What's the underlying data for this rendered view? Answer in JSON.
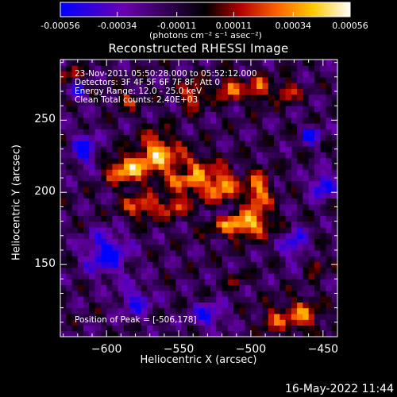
{
  "colorbar": {
    "ticks": [
      "-0.00056",
      "-0.00034",
      "-0.00011",
      "0.00011",
      "0.00034",
      "0.00056"
    ],
    "units": "(photons cm⁻² s⁻¹ asec⁻²)"
  },
  "title": "Reconstructed RHESSI Image",
  "annotations": {
    "time": "23-Nov-2011 05:50:28.000 to 05:52:12.000",
    "detectors": "Detectors: 3F 4F 5F 6F 7F 8F, Att 0",
    "energy": "Energy Range: 12.0 - 25.0 keV",
    "clean": "Clean     Total counts: 2.40E+03",
    "peak": "Position of Peak = [-506,178]"
  },
  "footer": {
    "timestamp": "16-May-2022 11:44"
  },
  "chart_data": {
    "type": "heatmap",
    "title": "Reconstructed RHESSI Image",
    "xlabel": "Heliocentric X (arcsec)",
    "ylabel": "Heliocentric Y (arcsec)",
    "xlim": [
      -632,
      -440
    ],
    "ylim": [
      100,
      292
    ],
    "x_ticks": [
      -600,
      -550,
      -500,
      -450
    ],
    "x_tick_labels": [
      "−600",
      "−550",
      "−500",
      "−450"
    ],
    "y_ticks": [
      150,
      200,
      250
    ],
    "y_tick_labels": [
      "150",
      "200",
      "250"
    ],
    "colorbar_range": [
      -0.00056,
      0.00056
    ],
    "colormap": [
      "#0000ff",
      "#6a00b0",
      "#000000",
      "#b00000",
      "#ff6400",
      "#ffc800",
      "#ffffff"
    ],
    "peak_position": [
      -506,
      178
    ],
    "peak_value": 0.00056,
    "blobs": [
      {
        "x": -586,
        "y": 216,
        "sx": 10,
        "sy": 7,
        "amp": 0.00052
      },
      {
        "x": -565,
        "y": 228,
        "sx": 9,
        "sy": 10,
        "amp": 0.0005
      },
      {
        "x": -543,
        "y": 212,
        "sx": 10,
        "sy": 10,
        "amp": 0.00052
      },
      {
        "x": -520,
        "y": 205,
        "sx": 8,
        "sy": 9,
        "amp": 0.00046
      },
      {
        "x": -506,
        "y": 178,
        "sx": 14,
        "sy": 6,
        "amp": 0.00056
      },
      {
        "x": -495,
        "y": 200,
        "sx": 6,
        "sy": 10,
        "amp": 0.0005
      },
      {
        "x": -575,
        "y": 190,
        "sx": 10,
        "sy": 6,
        "amp": 0.0004
      },
      {
        "x": -553,
        "y": 190,
        "sx": 6,
        "sy": 5,
        "amp": 0.0003
      },
      {
        "x": -540,
        "y": 268,
        "sx": 6,
        "sy": 7,
        "amp": 0.0004
      },
      {
        "x": -515,
        "y": 272,
        "sx": 6,
        "sy": 6,
        "amp": 0.00045
      },
      {
        "x": -495,
        "y": 272,
        "sx": 5,
        "sy": 7,
        "amp": 0.00042
      },
      {
        "x": -475,
        "y": 270,
        "sx": 5,
        "sy": 5,
        "amp": 0.0004
      },
      {
        "x": -586,
        "y": 264,
        "sx": 6,
        "sy": 4,
        "amp": 0.0003
      },
      {
        "x": -625,
        "y": 282,
        "sx": 5,
        "sy": 4,
        "amp": 0.00028
      },
      {
        "x": -465,
        "y": 115,
        "sx": 9,
        "sy": 8,
        "amp": 0.0004
      },
      {
        "x": -485,
        "y": 112,
        "sx": 6,
        "sy": 6,
        "amp": 0.0003
      },
      {
        "x": -455,
        "y": 150,
        "sx": 4,
        "sy": 4,
        "amp": 0.0003
      },
      {
        "x": -510,
        "y": 140,
        "sx": 4,
        "sy": 4,
        "amp": 0.0002
      },
      {
        "x": -545,
        "y": 215,
        "sx": 4,
        "sy": 3,
        "amp": -0.0004
      },
      {
        "x": -520,
        "y": 186,
        "sx": 5,
        "sy": 3,
        "amp": -0.0003
      },
      {
        "x": -600,
        "y": 158,
        "sx": 10,
        "sy": 10,
        "amp": -0.00045
      },
      {
        "x": -615,
        "y": 230,
        "sx": 6,
        "sy": 8,
        "amp": -0.0004
      },
      {
        "x": -450,
        "y": 205,
        "sx": 6,
        "sy": 6,
        "amp": -0.00045
      },
      {
        "x": -458,
        "y": 240,
        "sx": 4,
        "sy": 4,
        "amp": -0.0005
      },
      {
        "x": -530,
        "y": 115,
        "sx": 8,
        "sy": 6,
        "amp": -0.00035
      },
      {
        "x": -580,
        "y": 125,
        "sx": 8,
        "sy": 8,
        "amp": -0.0003
      },
      {
        "x": -620,
        "y": 270,
        "sx": 4,
        "sy": 4,
        "amp": -0.00035
      },
      {
        "x": -470,
        "y": 165,
        "sx": 6,
        "sy": 8,
        "amp": -0.00035
      }
    ]
  }
}
